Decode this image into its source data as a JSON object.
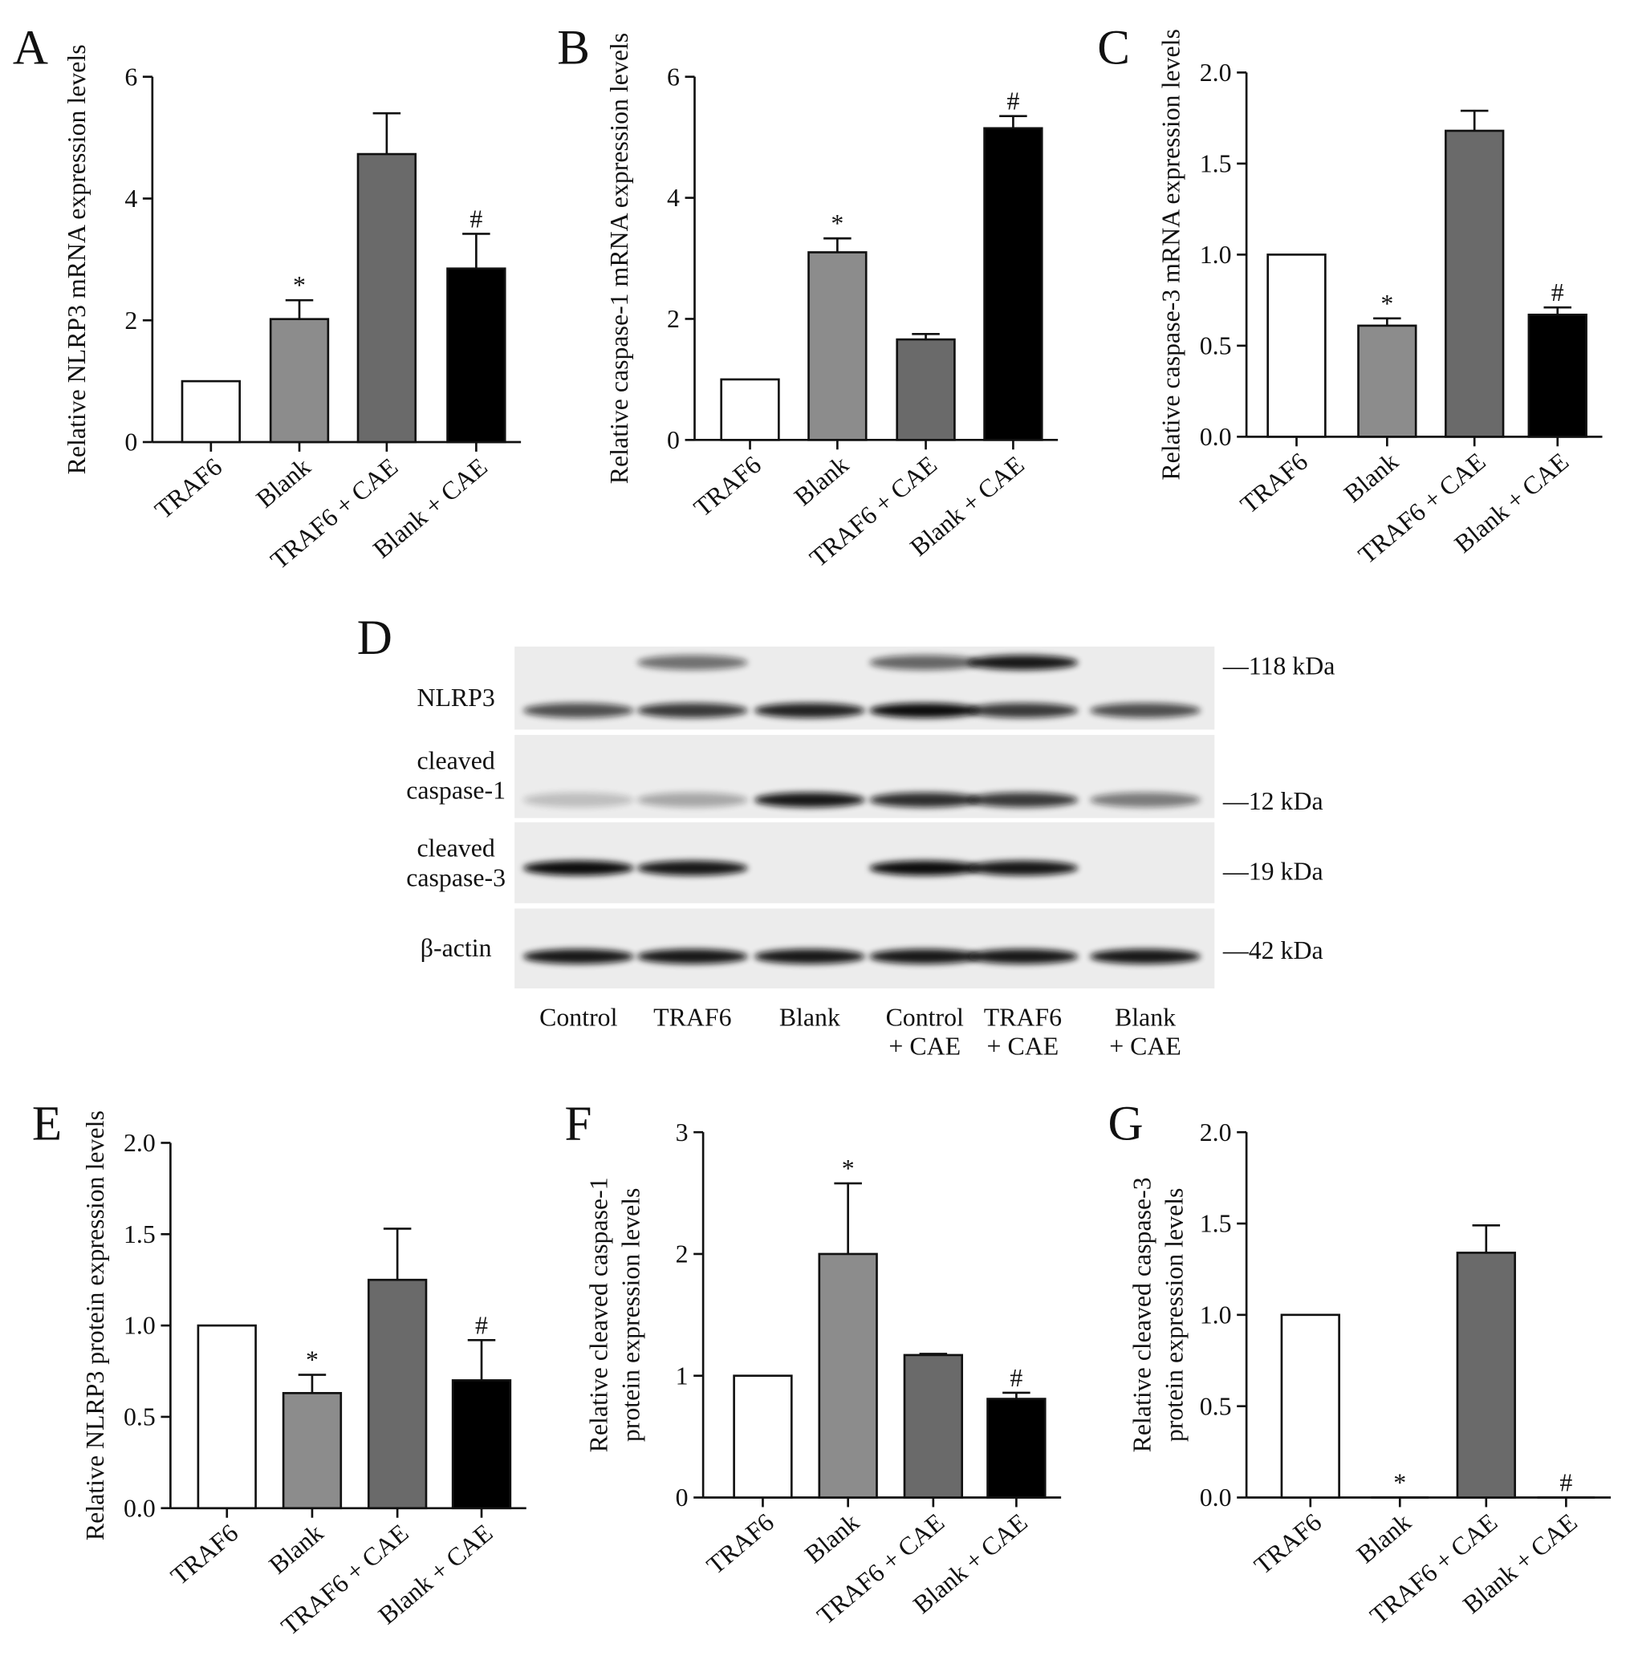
{
  "chart_data": [
    {
      "type": "bar",
      "panel": "A",
      "ylabel": "Relative NLRP3 mRNA expression levels",
      "categories": [
        "TRAF6",
        "Blank",
        "TRAF6 + CAE",
        "Blank + CAE"
      ],
      "values": [
        1,
        2.02,
        4.73,
        2.85
      ],
      "errors": [
        null,
        0.31,
        0.67,
        0.57
      ],
      "annotations": [
        null,
        "*",
        null,
        "#"
      ],
      "colors": [
        "#ffffff",
        "#8c8c8c",
        "#6a6a6a",
        "#000000"
      ],
      "ylim": [
        0,
        6
      ],
      "yticks": [
        0,
        2,
        4,
        6
      ]
    },
    {
      "type": "bar",
      "panel": "B",
      "ylabel": "Relative caspase-1 mRNA expression levels",
      "categories": [
        "TRAF6",
        "Blank",
        "TRAF6 + CAE",
        "Blank + CAE"
      ],
      "values": [
        1,
        3.1,
        1.66,
        5.15
      ],
      "errors": [
        null,
        0.23,
        0.09,
        0.2
      ],
      "annotations": [
        null,
        "*",
        null,
        "#"
      ],
      "colors": [
        "#ffffff",
        "#8c8c8c",
        "#6a6a6a",
        "#000000"
      ],
      "ylim": [
        0,
        6
      ],
      "yticks": [
        0,
        2,
        4,
        6
      ]
    },
    {
      "type": "bar",
      "panel": "C",
      "ylabel": "Relative caspase-3 mRNA expression levels",
      "categories": [
        "TRAF6",
        "Blank",
        "TRAF6 + CAE",
        "Blank + CAE"
      ],
      "values": [
        1,
        0.61,
        1.68,
        0.67
      ],
      "errors": [
        null,
        0.04,
        0.11,
        0.04
      ],
      "annotations": [
        null,
        "*",
        null,
        "#"
      ],
      "colors": [
        "#ffffff",
        "#8c8c8c",
        "#6a6a6a",
        "#000000"
      ],
      "ylim": [
        0,
        2
      ],
      "yticks": [
        {
          "value": 0,
          "label": "0.0"
        },
        {
          "value": 0.5,
          "label": "0.5"
        },
        {
          "value": 1,
          "label": "1.0"
        },
        {
          "value": 1.5,
          "label": "1.5"
        },
        {
          "value": 2,
          "label": "2.0"
        }
      ]
    },
    {
      "type": "bar",
      "panel": "E",
      "ylabel": "Relative NLRP3 protein expression levels",
      "categories": [
        "TRAF6",
        "Blank",
        "TRAF6 + CAE",
        "Blank + CAE"
      ],
      "values": [
        1,
        0.63,
        1.25,
        0.7
      ],
      "errors": [
        null,
        0.1,
        0.28,
        0.22
      ],
      "annotations": [
        null,
        "*",
        null,
        "#"
      ],
      "colors": [
        "#ffffff",
        "#8c8c8c",
        "#6a6a6a",
        "#000000"
      ],
      "ylim": [
        0,
        2
      ],
      "yticks": [
        {
          "value": 0,
          "label": "0.0"
        },
        {
          "value": 0.5,
          "label": "0.5"
        },
        {
          "value": 1,
          "label": "1.0"
        },
        {
          "value": 1.5,
          "label": "1.5"
        },
        {
          "value": 2,
          "label": "2.0"
        }
      ]
    },
    {
      "type": "bar",
      "panel": "F",
      "ylabel": [
        "Relative cleaved caspase-1",
        "protein expression levels"
      ],
      "categories": [
        "TRAF6",
        "Blank",
        "TRAF6 + CAE",
        "Blank + CAE"
      ],
      "values": [
        1,
        2.0,
        1.17,
        0.81
      ],
      "errors": [
        null,
        0.58,
        0.01,
        0.05
      ],
      "annotations": [
        null,
        "*",
        null,
        "#"
      ],
      "colors": [
        "#ffffff",
        "#8c8c8c",
        "#6a6a6a",
        "#000000"
      ],
      "ylim": [
        0,
        3
      ],
      "yticks": [
        0,
        1,
        2,
        3
      ]
    },
    {
      "type": "bar",
      "panel": "G",
      "ylabel": [
        "Relative cleaved caspase-3",
        "protein expression levels"
      ],
      "categories": [
        "TRAF6",
        "Blank",
        "TRAF6 + CAE",
        "Blank + CAE"
      ],
      "values": [
        1,
        0,
        1.34,
        0
      ],
      "errors": [
        null,
        null,
        0.15,
        null
      ],
      "annotations": [
        null,
        "*",
        null,
        "#"
      ],
      "colors": [
        "#ffffff",
        "#8c8c8c",
        "#6a6a6a",
        "#000000"
      ],
      "ylim": [
        0,
        2
      ],
      "yticks": [
        {
          "value": 0,
          "label": "0.0"
        },
        {
          "value": 0.5,
          "label": "0.5"
        },
        {
          "value": 1,
          "label": "1.0"
        },
        {
          "value": 1.5,
          "label": "1.5"
        },
        {
          "value": 2,
          "label": "2.0"
        }
      ]
    }
  ],
  "blot": {
    "panel": "D",
    "rows": [
      [
        "NLRP3"
      ],
      [
        "cleaved",
        "caspase-1"
      ],
      [
        "cleaved",
        "caspase-3"
      ],
      [
        "β-actin"
      ]
    ],
    "markers": [
      "—118 kDa",
      "—12 kDa",
      "—19 kDa",
      "—42 kDa"
    ],
    "lanes": [
      [
        "Control"
      ],
      [
        "TRAF6"
      ],
      [
        "Blank"
      ],
      [
        "Control",
        "+ CAE"
      ],
      [
        "TRAF6",
        "+ CAE"
      ],
      [
        "Blank",
        "+ CAE"
      ]
    ]
  }
}
